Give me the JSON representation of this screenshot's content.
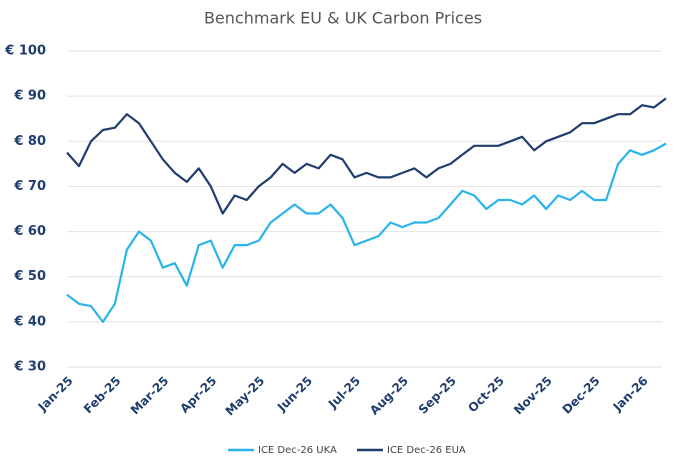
{
  "chart_data": {
    "type": "line",
    "title": "Benchmark EU & UK Carbon Prices",
    "categories": [
      "Jan-25",
      null,
      null,
      null,
      "Feb-25",
      null,
      null,
      null,
      "Mar-25",
      null,
      null,
      null,
      "Apr-25",
      null,
      null,
      null,
      "May-25",
      null,
      null,
      null,
      "Jun-25",
      null,
      null,
      null,
      "Jul-25",
      null,
      null,
      null,
      "Aug-25",
      null,
      null,
      null,
      "Sep-25",
      null,
      null,
      null,
      "Oct-25",
      null,
      null,
      null,
      "Nov-25",
      null,
      null,
      null,
      "Dec-25",
      null,
      null,
      null,
      "Jan-26",
      null,
      null
    ],
    "series": [
      {
        "name": "ICE Dec-26 UKA",
        "color": "#2ab4ea",
        "values": [
          46,
          44,
          43.5,
          40,
          44,
          56,
          60,
          58,
          52,
          53,
          48,
          57,
          58,
          52,
          57,
          57,
          58,
          62,
          64,
          66,
          64,
          64,
          66,
          63,
          57,
          58,
          59,
          62,
          61,
          62,
          62,
          63,
          66,
          69,
          68,
          65,
          67,
          67,
          66,
          68,
          65,
          68,
          67,
          69,
          67,
          67,
          75,
          78,
          77,
          78,
          79.5
        ]
      },
      {
        "name": "ICE Dec-26 EUA",
        "color": "#1f3d6e",
        "values": [
          77.5,
          74.5,
          80,
          82.5,
          83,
          86,
          84,
          80,
          76,
          73,
          71,
          74,
          70,
          64,
          68,
          67,
          70,
          72,
          75,
          73,
          75,
          74,
          77,
          76,
          72,
          73,
          72,
          72,
          73,
          74,
          72,
          74,
          75,
          77,
          79,
          79,
          79,
          80,
          81,
          78,
          80,
          81,
          82,
          84,
          84,
          85,
          86,
          86,
          88,
          87.5,
          89.5
        ]
      }
    ],
    "ylim": [
      30,
      100
    ],
    "yticks": [
      {
        "value": 30,
        "label": "€ 30"
      },
      {
        "value": 40,
        "label": "€ 40"
      },
      {
        "value": 50,
        "label": "€ 50"
      },
      {
        "value": 60,
        "label": "€ 60"
      },
      {
        "value": 70,
        "label": "€ 70"
      },
      {
        "value": 80,
        "label": "€ 80"
      },
      {
        "value": 90,
        "label": "€ 90"
      },
      {
        "value": 100,
        "label": "€ 100"
      }
    ],
    "grid": true
  }
}
